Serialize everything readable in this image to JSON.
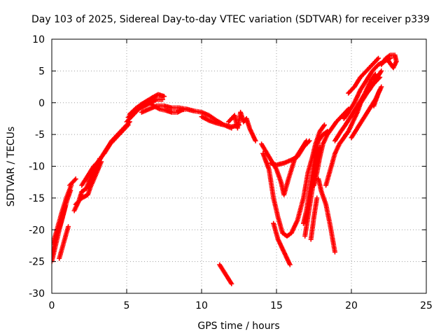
{
  "chart_data": {
    "type": "scatter",
    "title": "Day 103 of 2025, Sidereal Day-to-day VTEC variation (SDTVAR) for receiver p339",
    "xlabel": "GPS time / hours",
    "ylabel": "SDTVAR / TECUs",
    "xlim": [
      0,
      25
    ],
    "ylim": [
      -30,
      10
    ],
    "xticks": [
      "0",
      "5",
      "10",
      "15",
      "20",
      "25"
    ],
    "yticks": [
      "-30",
      "-25",
      "-20",
      "-15",
      "-10",
      "-5",
      "0",
      "5",
      "10"
    ],
    "grid": true,
    "marker": "plus",
    "colors": {
      "points": "#ff0000",
      "grid": "#a0a0a0",
      "axis": "#000000"
    },
    "tracks": [
      [
        [
          0.0,
          -25.0
        ],
        [
          0.25,
          -22.5
        ],
        [
          0.5,
          -20.0
        ],
        [
          0.75,
          -17.8
        ],
        [
          1.0,
          -15.5
        ],
        [
          1.25,
          -13.8
        ]
      ],
      [
        [
          0.05,
          -23.5
        ],
        [
          0.35,
          -20.5
        ],
        [
          0.65,
          -18.5
        ],
        [
          0.9,
          -16.3
        ]
      ],
      [
        [
          0.1,
          -22.0
        ],
        [
          0.4,
          -19.5
        ],
        [
          0.7,
          -17.0
        ],
        [
          1.0,
          -14.8
        ],
        [
          1.3,
          -13.0
        ]
      ],
      [
        [
          0.5,
          -24.5
        ],
        [
          0.8,
          -22.0
        ],
        [
          1.1,
          -19.5
        ]
      ],
      [
        [
          1.2,
          -13.0
        ],
        [
          1.6,
          -12.0
        ]
      ],
      [
        [
          1.5,
          -17.0
        ],
        [
          1.8,
          -15.5
        ],
        [
          2.0,
          -14.0
        ],
        [
          2.3,
          -13.5
        ],
        [
          2.6,
          -11.8
        ],
        [
          2.9,
          -10.3
        ],
        [
          3.2,
          -8.8
        ]
      ],
      [
        [
          1.6,
          -16.0
        ],
        [
          2.0,
          -15.0
        ],
        [
          2.4,
          -14.5
        ],
        [
          2.6,
          -13.2
        ],
        [
          3.0,
          -11.0
        ],
        [
          3.3,
          -9.3
        ]
      ],
      [
        [
          2.0,
          -13.0
        ],
        [
          2.4,
          -11.5
        ],
        [
          2.8,
          -10.0
        ],
        [
          3.2,
          -9.0
        ],
        [
          3.6,
          -7.5
        ],
        [
          4.0,
          -6.0
        ],
        [
          4.4,
          -5.0
        ],
        [
          4.8,
          -4.0
        ],
        [
          5.2,
          -3.0
        ]
      ],
      [
        [
          3.5,
          -8.0
        ],
        [
          3.9,
          -6.5
        ],
        [
          4.3,
          -5.5
        ],
        [
          4.7,
          -4.5
        ],
        [
          5.1,
          -3.5
        ]
      ],
      [
        [
          5.0,
          -3.0
        ],
        [
          5.4,
          -2.0
        ],
        [
          5.8,
          -1.0
        ],
        [
          6.2,
          -0.5
        ],
        [
          6.6,
          0.0
        ],
        [
          7.0,
          0.5
        ],
        [
          7.4,
          0.5
        ]
      ],
      [
        [
          5.1,
          -2.3
        ],
        [
          5.5,
          -1.5
        ],
        [
          5.9,
          -0.5
        ],
        [
          6.3,
          0.2
        ],
        [
          6.7,
          0.8
        ],
        [
          7.1,
          1.3
        ],
        [
          7.5,
          1.0
        ]
      ],
      [
        [
          5.2,
          -1.8
        ],
        [
          5.6,
          -0.9
        ],
        [
          6.0,
          -0.2
        ],
        [
          6.4,
          0.3
        ],
        [
          6.8,
          -0.5
        ],
        [
          7.2,
          -1.0
        ],
        [
          7.6,
          -1.2
        ],
        [
          8.0,
          -1.5
        ],
        [
          8.4,
          -1.5
        ],
        [
          8.8,
          -1.0
        ]
      ],
      [
        [
          6.0,
          -1.5
        ],
        [
          6.5,
          -1.0
        ],
        [
          7.0,
          -0.5
        ],
        [
          7.5,
          -0.5
        ],
        [
          8.0,
          -0.8
        ],
        [
          8.5,
          -0.8
        ],
        [
          9.0,
          -1.0
        ]
      ],
      [
        [
          8.5,
          -1.2
        ],
        [
          9.0,
          -1.0
        ],
        [
          9.5,
          -1.3
        ],
        [
          10.0,
          -1.5
        ],
        [
          10.5,
          -2.0
        ],
        [
          11.0,
          -2.8
        ],
        [
          11.5,
          -3.5
        ],
        [
          12.0,
          -3.8
        ],
        [
          12.5,
          -3.5
        ]
      ],
      [
        [
          10.0,
          -2.2
        ],
        [
          10.5,
          -2.8
        ],
        [
          11.0,
          -3.2
        ],
        [
          11.5,
          -3.5
        ],
        [
          12.0,
          -4.0
        ]
      ],
      [
        [
          11.8,
          -3.0
        ],
        [
          12.2,
          -2.0
        ],
        [
          12.4,
          -4.0
        ],
        [
          12.6,
          -1.5
        ],
        [
          12.8,
          -3.0
        ],
        [
          13.0,
          -2.5
        ],
        [
          13.2,
          -4.0
        ],
        [
          13.4,
          -5.0
        ],
        [
          13.6,
          -6.0
        ]
      ],
      [
        [
          11.2,
          -25.5
        ],
        [
          11.6,
          -27.0
        ],
        [
          12.0,
          -28.5
        ]
      ],
      [
        [
          14.0,
          -6.5
        ],
        [
          14.5,
          -8.5
        ],
        [
          15.0,
          -10.5
        ],
        [
          15.3,
          -12.5
        ],
        [
          15.5,
          -14.5
        ],
        [
          15.8,
          -12.0
        ],
        [
          16.2,
          -9.0
        ],
        [
          16.6,
          -7.5
        ],
        [
          17.0,
          -6.0
        ]
      ],
      [
        [
          14.1,
          -8.0
        ],
        [
          14.5,
          -10.5
        ],
        [
          14.8,
          -15.0
        ],
        [
          15.1,
          -18.0
        ],
        [
          15.4,
          -20.5
        ],
        [
          15.7,
          -21.0
        ],
        [
          16.0,
          -20.5
        ],
        [
          16.4,
          -18.5
        ],
        [
          16.8,
          -15.0
        ],
        [
          17.1,
          -11.0
        ],
        [
          17.4,
          -8.5
        ],
        [
          17.6,
          -6.5
        ],
        [
          17.9,
          -4.5
        ],
        [
          18.2,
          -3.5
        ]
      ],
      [
        [
          14.6,
          -9.5
        ],
        [
          15.0,
          -9.8
        ],
        [
          15.5,
          -9.5
        ],
        [
          16.0,
          -9.0
        ],
        [
          16.4,
          -8.5
        ],
        [
          16.8,
          -7.0
        ],
        [
          17.2,
          -6.0
        ]
      ],
      [
        [
          14.8,
          -19.0
        ],
        [
          15.1,
          -21.5
        ],
        [
          15.5,
          -23.5
        ],
        [
          15.9,
          -25.5
        ]
      ],
      [
        [
          16.8,
          -19.0
        ],
        [
          17.0,
          -17.0
        ],
        [
          17.2,
          -14.0
        ],
        [
          17.4,
          -11.0
        ],
        [
          17.6,
          -8.0
        ],
        [
          17.8,
          -6.0
        ],
        [
          18.1,
          -5.0
        ],
        [
          18.4,
          -4.5
        ]
      ],
      [
        [
          16.9,
          -21.0
        ],
        [
          17.1,
          -18.0
        ],
        [
          17.3,
          -15.0
        ],
        [
          17.5,
          -12.0
        ],
        [
          17.7,
          -9.5
        ],
        [
          17.9,
          -7.0
        ]
      ],
      [
        [
          17.3,
          -21.5
        ],
        [
          17.5,
          -18.0
        ],
        [
          17.7,
          -15.0
        ]
      ],
      [
        [
          17.5,
          -13.0
        ],
        [
          17.7,
          -11.0
        ],
        [
          17.9,
          -8.5
        ],
        [
          18.1,
          -6.5
        ],
        [
          18.4,
          -5.0
        ],
        [
          18.7,
          -4.0
        ],
        [
          19.0,
          -3.0
        ],
        [
          19.4,
          -2.0
        ],
        [
          19.8,
          -1.0
        ]
      ],
      [
        [
          17.8,
          -12.0
        ],
        [
          18.0,
          -14.0
        ],
        [
          18.3,
          -16.0
        ],
        [
          18.6,
          -19.5
        ],
        [
          18.9,
          -23.5
        ]
      ],
      [
        [
          18.3,
          -13.0
        ],
        [
          18.6,
          -10.5
        ],
        [
          18.9,
          -8.0
        ],
        [
          19.2,
          -6.5
        ],
        [
          19.5,
          -5.5
        ],
        [
          19.8,
          -4.5
        ],
        [
          20.1,
          -3.0
        ],
        [
          20.4,
          -1.5
        ],
        [
          20.7,
          0.5
        ],
        [
          21.0,
          2.0
        ],
        [
          21.3,
          3.5
        ],
        [
          21.6,
          4.5
        ]
      ],
      [
        [
          18.9,
          -6.0
        ],
        [
          19.3,
          -4.5
        ],
        [
          19.6,
          -3.5
        ],
        [
          20.0,
          -2.0
        ],
        [
          20.4,
          -0.5
        ],
        [
          20.8,
          1.0
        ],
        [
          21.2,
          2.0
        ],
        [
          21.6,
          3.5
        ],
        [
          22.0,
          5.0
        ]
      ],
      [
        [
          19.5,
          -2.5
        ],
        [
          19.8,
          -1.5
        ],
        [
          20.2,
          0.0
        ],
        [
          20.6,
          2.0
        ],
        [
          21.0,
          3.5
        ],
        [
          21.4,
          5.0
        ],
        [
          21.8,
          6.0
        ],
        [
          22.2,
          6.5
        ],
        [
          22.6,
          7.0
        ]
      ],
      [
        [
          19.8,
          1.5
        ],
        [
          20.2,
          2.5
        ],
        [
          20.6,
          4.0
        ],
        [
          21.0,
          5.0
        ],
        [
          21.4,
          6.0
        ],
        [
          21.8,
          7.0
        ]
      ],
      [
        [
          20.0,
          -5.5
        ],
        [
          20.4,
          -4.0
        ],
        [
          20.8,
          -2.5
        ],
        [
          21.2,
          -1.0
        ],
        [
          21.6,
          0.5
        ],
        [
          21.9,
          2.0
        ]
      ],
      [
        [
          20.5,
          -0.5
        ],
        [
          20.9,
          1.0
        ],
        [
          21.3,
          2.5
        ],
        [
          21.7,
          3.5
        ],
        [
          21.9,
          4.0
        ]
      ],
      [
        [
          21.5,
          -0.5
        ],
        [
          21.8,
          1.5
        ],
        [
          22.0,
          2.5
        ]
      ],
      [
        [
          22.0,
          6.0
        ],
        [
          22.3,
          7.0
        ],
        [
          22.6,
          7.5
        ],
        [
          22.9,
          7.5
        ],
        [
          23.0,
          6.5
        ],
        [
          22.8,
          5.5
        ],
        [
          22.5,
          6.5
        ]
      ]
    ]
  }
}
